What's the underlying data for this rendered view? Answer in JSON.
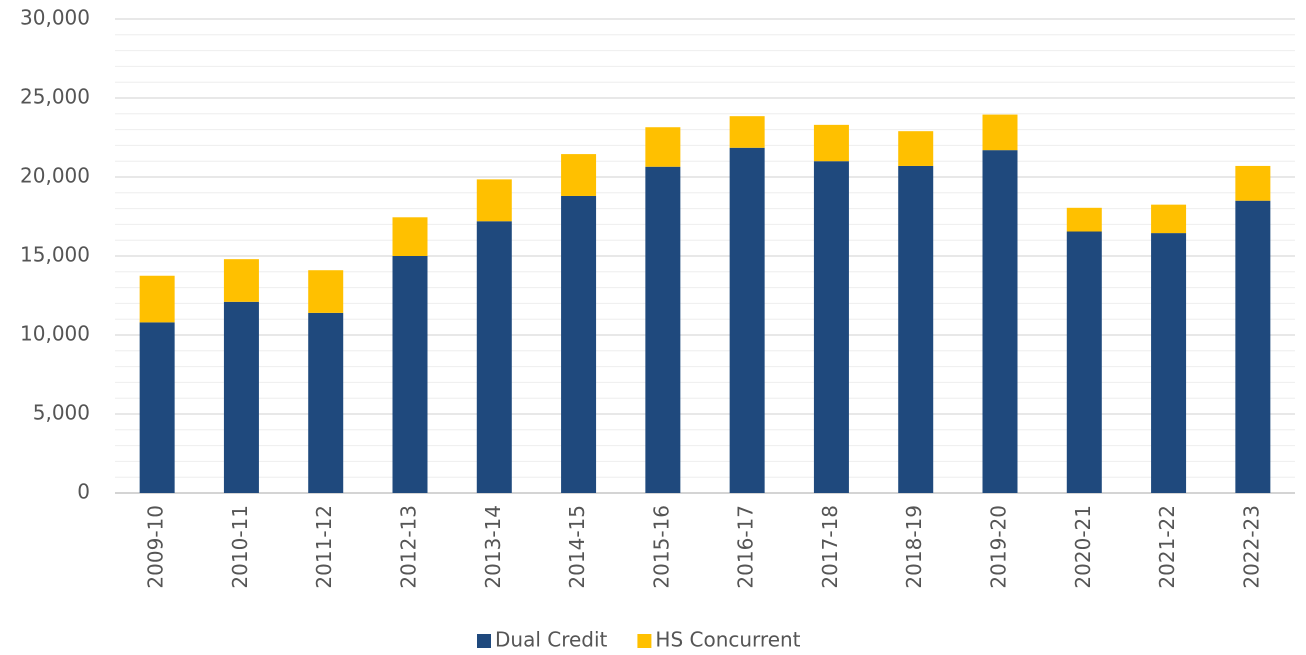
{
  "chart_data": {
    "type": "stacked_bar",
    "categories": [
      "2009-10",
      "2010-11",
      "2011-12",
      "2012-13",
      "2013-14",
      "2014-15",
      "2015-16",
      "2016-17",
      "2017-18",
      "2018-19",
      "2019-20",
      "2020-21",
      "2021-22",
      "2022-23"
    ],
    "series": [
      {
        "name": "Dual Credit",
        "color": "#1f497d",
        "values": [
          10800,
          12100,
          11400,
          15000,
          17200,
          18800,
          20650,
          21850,
          21000,
          20700,
          21700,
          16550,
          16450,
          18500
        ]
      },
      {
        "name": "HS Concurrent",
        "color": "#ffc000",
        "values": [
          2950,
          2700,
          2700,
          2450,
          2650,
          2650,
          2500,
          2000,
          2300,
          2200,
          2250,
          1500,
          1800,
          2200
        ]
      }
    ],
    "ylim": [
      0,
      30000
    ],
    "yticks": [
      {
        "value": 0,
        "label": "0"
      },
      {
        "value": 5000,
        "label": "5,000"
      },
      {
        "value": 10000,
        "label": "10,000"
      },
      {
        "value": 15000,
        "label": "15,000"
      },
      {
        "value": 20000,
        "label": "20,000"
      },
      {
        "value": 25000,
        "label": "25,000"
      },
      {
        "value": 30000,
        "label": "30,000"
      }
    ],
    "minor_yticks": [
      1000,
      2000,
      3000,
      4000,
      6000,
      7000,
      8000,
      9000,
      11000,
      12000,
      13000,
      14000,
      16000,
      17000,
      18000,
      19000,
      21000,
      22000,
      23000,
      24000,
      26000,
      27000,
      28000,
      29000
    ],
    "grid": true,
    "legend": "bottom"
  }
}
